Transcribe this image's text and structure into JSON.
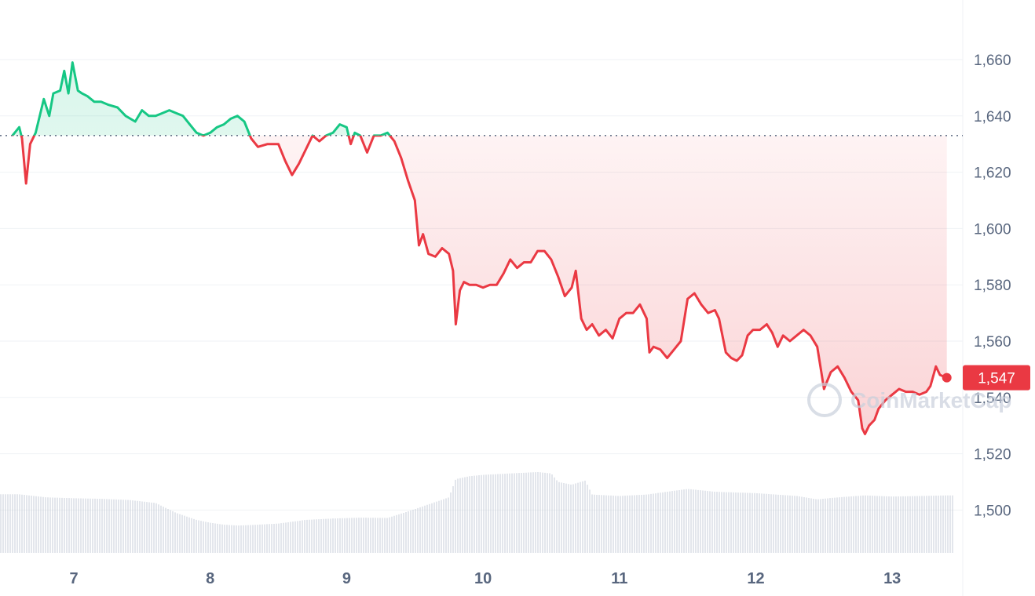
{
  "watermark": "CoinMarketCap",
  "colors": {
    "up": "#16c784",
    "down": "#ea3943",
    "grid": "#eff2f5",
    "axis_text": "#58667e",
    "volume": "#c7cdd8",
    "baseline": "#58667e"
  },
  "chart_data": {
    "type": "line",
    "title": "",
    "xlabel": "",
    "ylabel": "",
    "ylim": [
      1485,
      1672
    ],
    "xlim": [
      6.55,
      13.55
    ],
    "yticks": [
      1500,
      1520,
      1540,
      1560,
      1580,
      1600,
      1620,
      1640,
      1660
    ],
    "ytick_labels": [
      "1,500",
      "1,520",
      "1,540",
      "1,560",
      "1,580",
      "1,600",
      "1,620",
      "1,640",
      "1,660"
    ],
    "xticks": [
      7,
      8,
      9,
      10,
      11,
      12,
      13
    ],
    "xtick_labels": [
      "7",
      "8",
      "9",
      "10",
      "11",
      "12",
      "13"
    ],
    "baseline": 1633,
    "last_price": 1547,
    "last_price_label": "1,547",
    "grid": true,
    "series": [
      {
        "values": [
          [
            6.55,
            1633
          ],
          [
            6.6,
            1636
          ],
          [
            6.62,
            1632
          ],
          [
            6.65,
            1616
          ],
          [
            6.68,
            1630
          ],
          [
            6.72,
            1634
          ],
          [
            6.75,
            1640
          ],
          [
            6.78,
            1646
          ],
          [
            6.82,
            1640
          ],
          [
            6.85,
            1648
          ],
          [
            6.9,
            1649
          ],
          [
            6.93,
            1656
          ],
          [
            6.96,
            1648
          ],
          [
            6.99,
            1659
          ],
          [
            7.03,
            1649
          ],
          [
            7.06,
            1648
          ],
          [
            7.1,
            1647
          ],
          [
            7.15,
            1645
          ],
          [
            7.2,
            1645
          ],
          [
            7.25,
            1644
          ],
          [
            7.32,
            1643
          ],
          [
            7.38,
            1640
          ],
          [
            7.45,
            1638
          ],
          [
            7.5,
            1642
          ],
          [
            7.55,
            1640
          ],
          [
            7.6,
            1640
          ],
          [
            7.65,
            1641
          ],
          [
            7.7,
            1642
          ],
          [
            7.75,
            1641
          ],
          [
            7.8,
            1640
          ],
          [
            7.85,
            1637
          ],
          [
            7.9,
            1634
          ],
          [
            7.95,
            1633
          ],
          [
            8.0,
            1634
          ],
          [
            8.05,
            1636
          ],
          [
            8.1,
            1637
          ],
          [
            8.15,
            1639
          ],
          [
            8.2,
            1640
          ],
          [
            8.25,
            1638
          ],
          [
            8.3,
            1632
          ],
          [
            8.35,
            1629
          ],
          [
            8.42,
            1630
          ],
          [
            8.5,
            1630
          ],
          [
            8.55,
            1624
          ],
          [
            8.6,
            1619
          ],
          [
            8.65,
            1623
          ],
          [
            8.7,
            1628
          ],
          [
            8.75,
            1633
          ],
          [
            8.8,
            1631
          ],
          [
            8.85,
            1633
          ],
          [
            8.9,
            1634
          ],
          [
            8.95,
            1637
          ],
          [
            9.0,
            1636
          ],
          [
            9.03,
            1630
          ],
          [
            9.06,
            1634
          ],
          [
            9.1,
            1633
          ],
          [
            9.15,
            1627
          ],
          [
            9.2,
            1633
          ],
          [
            9.25,
            1633
          ],
          [
            9.3,
            1634
          ],
          [
            9.35,
            1631
          ],
          [
            9.4,
            1625
          ],
          [
            9.45,
            1617
          ],
          [
            9.5,
            1610
          ],
          [
            9.53,
            1594
          ],
          [
            9.56,
            1598
          ],
          [
            9.6,
            1591
          ],
          [
            9.65,
            1590
          ],
          [
            9.7,
            1593
          ],
          [
            9.75,
            1591
          ],
          [
            9.78,
            1585
          ],
          [
            9.8,
            1566
          ],
          [
            9.83,
            1578
          ],
          [
            9.86,
            1581
          ],
          [
            9.9,
            1580
          ],
          [
            9.95,
            1580
          ],
          [
            10.0,
            1579
          ],
          [
            10.05,
            1580
          ],
          [
            10.1,
            1580
          ],
          [
            10.15,
            1584
          ],
          [
            10.2,
            1589
          ],
          [
            10.25,
            1586
          ],
          [
            10.3,
            1588
          ],
          [
            10.35,
            1588
          ],
          [
            10.4,
            1592
          ],
          [
            10.45,
            1592
          ],
          [
            10.5,
            1589
          ],
          [
            10.55,
            1583
          ],
          [
            10.6,
            1576
          ],
          [
            10.65,
            1579
          ],
          [
            10.68,
            1585
          ],
          [
            10.72,
            1568
          ],
          [
            10.76,
            1564
          ],
          [
            10.8,
            1566
          ],
          [
            10.85,
            1562
          ],
          [
            10.9,
            1564
          ],
          [
            10.95,
            1561
          ],
          [
            11.0,
            1568
          ],
          [
            11.05,
            1570
          ],
          [
            11.1,
            1570
          ],
          [
            11.15,
            1573
          ],
          [
            11.2,
            1568
          ],
          [
            11.22,
            1556
          ],
          [
            11.25,
            1558
          ],
          [
            11.3,
            1557
          ],
          [
            11.35,
            1554
          ],
          [
            11.4,
            1557
          ],
          [
            11.45,
            1560
          ],
          [
            11.5,
            1575
          ],
          [
            11.55,
            1577
          ],
          [
            11.6,
            1573
          ],
          [
            11.65,
            1570
          ],
          [
            11.7,
            1571
          ],
          [
            11.73,
            1568
          ],
          [
            11.78,
            1556
          ],
          [
            11.82,
            1554
          ],
          [
            11.86,
            1553
          ],
          [
            11.9,
            1555
          ],
          [
            11.94,
            1562
          ],
          [
            11.98,
            1564
          ],
          [
            12.03,
            1564
          ],
          [
            12.08,
            1566
          ],
          [
            12.12,
            1563
          ],
          [
            12.16,
            1558
          ],
          [
            12.2,
            1562
          ],
          [
            12.25,
            1560
          ],
          [
            12.3,
            1562
          ],
          [
            12.35,
            1564
          ],
          [
            12.4,
            1562
          ],
          [
            12.45,
            1558
          ],
          [
            12.48,
            1549
          ],
          [
            12.5,
            1543
          ],
          [
            12.55,
            1549
          ],
          [
            12.6,
            1551
          ],
          [
            12.65,
            1547
          ],
          [
            12.7,
            1542
          ],
          [
            12.75,
            1539
          ],
          [
            12.78,
            1529
          ],
          [
            12.8,
            1527
          ],
          [
            12.83,
            1530
          ],
          [
            12.87,
            1532
          ],
          [
            12.9,
            1536
          ],
          [
            12.95,
            1539
          ],
          [
            13.0,
            1541
          ],
          [
            13.05,
            1543
          ],
          [
            13.1,
            1542
          ],
          [
            13.15,
            1542
          ],
          [
            13.2,
            1541
          ],
          [
            13.25,
            1542
          ],
          [
            13.28,
            1544
          ],
          [
            13.32,
            1551
          ],
          [
            13.35,
            1548
          ],
          [
            13.4,
            1547
          ]
        ]
      },
      {
        "type": "bar",
        "values": [
          [
            6.6,
            1505.6
          ],
          [
            6.8,
            1504.5
          ],
          [
            7.0,
            1504.2
          ],
          [
            7.2,
            1504.0
          ],
          [
            7.4,
            1503.6
          ],
          [
            7.6,
            1502.5
          ],
          [
            7.75,
            1499.0
          ],
          [
            7.9,
            1496.5
          ],
          [
            8.0,
            1495.5
          ],
          [
            8.1,
            1494.8
          ],
          [
            8.2,
            1494.5
          ],
          [
            8.35,
            1494.8
          ],
          [
            8.5,
            1495.2
          ],
          [
            8.7,
            1496.5
          ],
          [
            8.9,
            1497.0
          ],
          [
            9.1,
            1497.3
          ],
          [
            9.3,
            1497.2
          ],
          [
            9.45,
            1499.5
          ],
          [
            9.6,
            1502.0
          ],
          [
            9.75,
            1504.5
          ],
          [
            9.8,
            1511.0
          ],
          [
            9.9,
            1512.0
          ],
          [
            10.0,
            1512.5
          ],
          [
            10.2,
            1513.0
          ],
          [
            10.4,
            1513.5
          ],
          [
            10.5,
            1513.0
          ],
          [
            10.55,
            1510.0
          ],
          [
            10.65,
            1509.0
          ],
          [
            10.75,
            1510.5
          ],
          [
            10.8,
            1505.5
          ],
          [
            11.0,
            1505.0
          ],
          [
            11.2,
            1505.5
          ],
          [
            11.5,
            1507.5
          ],
          [
            11.7,
            1506.5
          ],
          [
            12.0,
            1506.0
          ],
          [
            12.3,
            1505.0
          ],
          [
            12.45,
            1503.8
          ],
          [
            12.6,
            1504.5
          ],
          [
            12.8,
            1505.2
          ],
          [
            13.0,
            1504.8
          ],
          [
            13.2,
            1505.0
          ],
          [
            13.4,
            1505.2
          ]
        ]
      }
    ]
  }
}
